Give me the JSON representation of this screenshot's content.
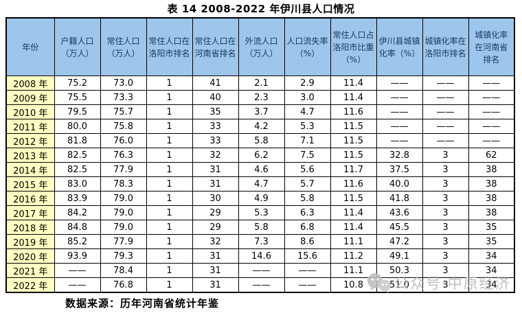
{
  "chart_data": {
    "type": "table",
    "title": "表 14 2008-2022 年伊川县人口情况",
    "columns": [
      "年份",
      "户籍人口（万人）",
      "常住人口（万人）",
      "常住人口在洛阳市排名",
      "常住人口在河南省排名",
      "外流人口（万人）",
      "人口流失率（%）",
      "常住人口占洛阳市比重（%）",
      "伊川县城镇化率（%）",
      "城镇化率在洛阳市排名",
      "城镇化率在河南省排名"
    ],
    "rows": [
      [
        "2008 年",
        "75.2",
        "73.0",
        "1",
        "41",
        "2.1",
        "2.9",
        "11.4",
        "——",
        "——",
        "——"
      ],
      [
        "2009 年",
        "75.5",
        "73.3",
        "1",
        "40",
        "2.3",
        "3.0",
        "11.4",
        "——",
        "——",
        "——"
      ],
      [
        "2010 年",
        "79.5",
        "75.7",
        "1",
        "35",
        "3.7",
        "4.7",
        "11.6",
        "——",
        "——",
        "——"
      ],
      [
        "2011 年",
        "80.0",
        "75.8",
        "1",
        "33",
        "4.2",
        "5.3",
        "11.5",
        "——",
        "——",
        "——"
      ],
      [
        "2012 年",
        "81.8",
        "76.0",
        "1",
        "33",
        "5.8",
        "7.1",
        "11.5",
        "——",
        "——",
        "——"
      ],
      [
        "2013 年",
        "82.5",
        "76.3",
        "1",
        "32",
        "6.2",
        "7.5",
        "11.5",
        "32.8",
        "3",
        "62"
      ],
      [
        "2014 年",
        "82.5",
        "77.9",
        "1",
        "31",
        "4.6",
        "5.6",
        "11.7",
        "37.5",
        "3",
        "38"
      ],
      [
        "2015 年",
        "83.0",
        "78.3",
        "1",
        "31",
        "4.7",
        "5.7",
        "11.6",
        "40.0",
        "3",
        "38"
      ],
      [
        "2016 年",
        "83.9",
        "79.0",
        "1",
        "30",
        "4.9",
        "5.8",
        "11.5",
        "41.8",
        "3",
        "38"
      ],
      [
        "2017 年",
        "84.2",
        "79.0",
        "1",
        "29",
        "5.3",
        "6.3",
        "11.4",
        "43.6",
        "3",
        "38"
      ],
      [
        "2018 年",
        "84.8",
        "79.0",
        "1",
        "29",
        "5.8",
        "6.8",
        "11.4",
        "45.5",
        "3",
        "35"
      ],
      [
        "2019 年",
        "85.2",
        "77.9",
        "1",
        "32",
        "7.3",
        "8.6",
        "11.1",
        "47.2",
        "3",
        "35"
      ],
      [
        "2020 年",
        "93.9",
        "79.3",
        "1",
        "31",
        "14.6",
        "15.6",
        "11.2",
        "49.1",
        "3",
        "34"
      ],
      [
        "2021 年",
        "——",
        "78.4",
        "1",
        "31",
        "——",
        "——",
        "11.1",
        "50.3",
        "3",
        "34"
      ],
      [
        "2022 年",
        "——",
        "76.8",
        "1",
        "31",
        "——",
        "——",
        "10.8",
        "51.0",
        "3",
        "34"
      ]
    ],
    "source": "数据来源：历年河南省统计年鉴",
    "missing_value_symbol": "——"
  },
  "watermark": {
    "text": "公众号·中原经济",
    "icon": "wechat-official-account-icon"
  },
  "colors": {
    "header_bg": "#9CC6EC",
    "header_text": "#17375E",
    "year_column_bg": "#FFFFC2",
    "border": "#000000",
    "watermark": "#B3B3B3"
  }
}
